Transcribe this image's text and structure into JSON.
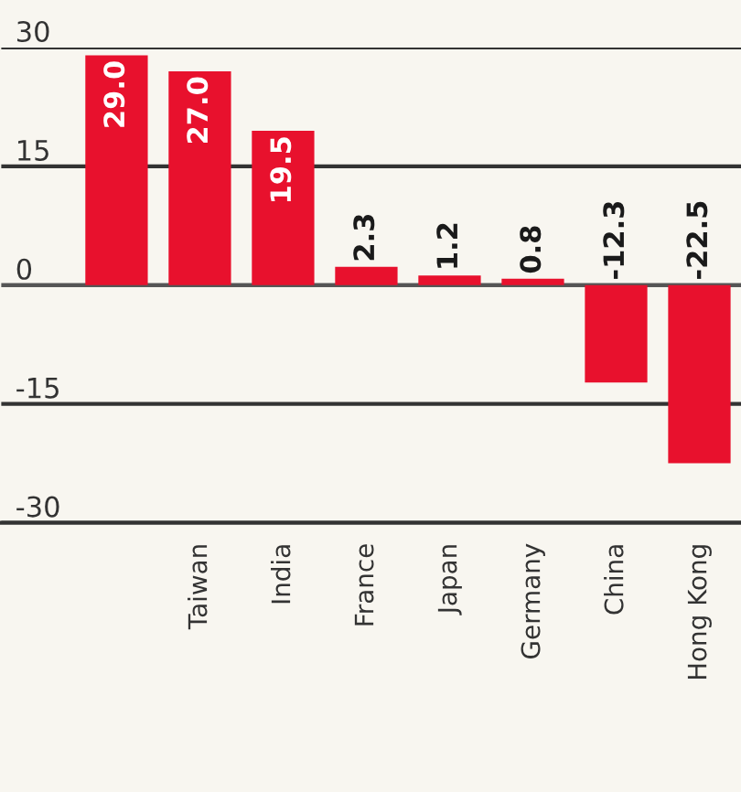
{
  "chart_data": {
    "type": "bar",
    "categories": [
      null,
      "Taiwan",
      "India",
      "France",
      "Japan",
      "Germany",
      "China",
      "Hong Kong"
    ],
    "values": [
      29.0,
      27.0,
      19.5,
      2.3,
      1.2,
      0.8,
      -12.3,
      -22.5
    ],
    "color": "#e8112d",
    "ylim": [
      -30,
      30
    ],
    "yticks": [
      -30,
      -15,
      0,
      15,
      30
    ],
    "value_labels": [
      "29.0",
      "27.0",
      "19.5",
      "2.3",
      "1.2",
      "0.8",
      "-12.3",
      "-22.5"
    ],
    "grid": "y"
  }
}
